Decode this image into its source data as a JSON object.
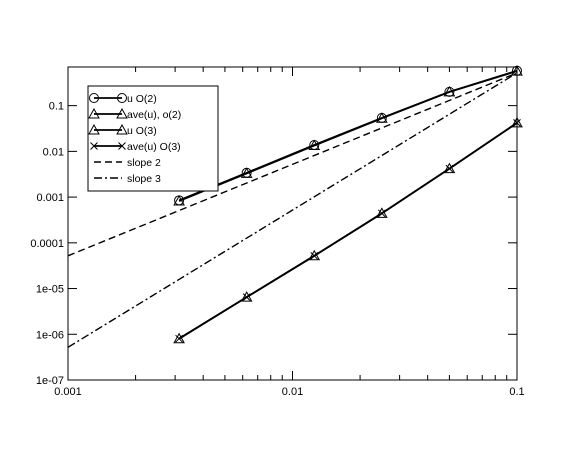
{
  "chart_data": {
    "type": "line",
    "title": "",
    "xlabel": "",
    "ylabel": "",
    "xscale": "log",
    "yscale": "log",
    "xlim": [
      0.001,
      0.1
    ],
    "ylim": [
      1e-07,
      0.7
    ],
    "grid": false,
    "legend_position": "top-left",
    "x_tick_labels": [
      {
        "value": 0.001,
        "label": "0.001"
      },
      {
        "value": 0.01,
        "label": "0.01"
      },
      {
        "value": 0.1,
        "label": "0.1"
      }
    ],
    "y_tick_labels": [
      {
        "value": 1e-07,
        "label": "1e-07"
      },
      {
        "value": 1e-06,
        "label": "1e-06"
      },
      {
        "value": 1e-05,
        "label": "1e-05"
      },
      {
        "value": 0.0001,
        "label": "0.0001"
      },
      {
        "value": 0.001,
        "label": "0.001"
      },
      {
        "value": 0.01,
        "label": "0.01"
      },
      {
        "value": 0.1,
        "label": "0.1"
      }
    ],
    "series": [
      {
        "name": "u O(2)",
        "marker": "circle",
        "line": "solid",
        "color": "#000000",
        "x": [
          0.003125,
          0.00625,
          0.0125,
          0.025,
          0.05,
          0.1
        ],
        "y": [
          0.00085,
          0.0034,
          0.0138,
          0.054,
          0.2,
          0.58
        ]
      },
      {
        "name": "ave(u), o(2)",
        "marker": "triangle",
        "line": "solid",
        "color": "#000000",
        "x": [
          0.003125,
          0.00625,
          0.0125,
          0.025,
          0.05,
          0.1
        ],
        "y": [
          0.00082,
          0.0033,
          0.0134,
          0.053,
          0.2,
          0.57
        ]
      },
      {
        "name": "u O(3)",
        "marker": "triangle",
        "line": "solid",
        "color": "#000000",
        "x": [
          0.003125,
          0.00625,
          0.0125,
          0.025,
          0.05,
          0.1
        ],
        "y": [
          8e-07,
          6.5e-06,
          5.2e-05,
          0.00044,
          0.0042,
          0.042
        ]
      },
      {
        "name": "ave(u) O(3)",
        "marker": "x",
        "line": "solid",
        "color": "#000000",
        "x": [
          0.003125,
          0.00625,
          0.0125,
          0.025,
          0.05,
          0.1
        ],
        "y": [
          8e-07,
          6.5e-06,
          5.2e-05,
          0.00044,
          0.0042,
          0.042
        ]
      },
      {
        "name": "slope 2",
        "marker": "none",
        "line": "dashed",
        "color": "#000000",
        "x": [
          0.001,
          0.1
        ],
        "y": [
          5.2e-05,
          0.52
        ]
      },
      {
        "name": "slope 3",
        "marker": "none",
        "line": "dashdot",
        "color": "#000000",
        "x": [
          0.001,
          0.1
        ],
        "y": [
          5.2e-07,
          0.52
        ]
      }
    ]
  }
}
